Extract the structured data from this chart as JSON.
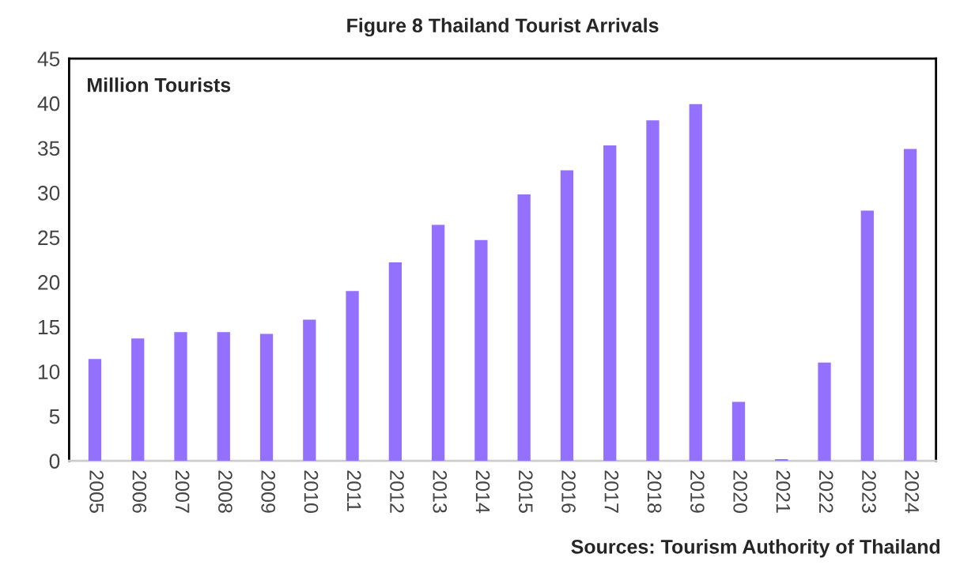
{
  "chart_data": {
    "type": "bar",
    "title": "Figure 8 Thailand Tourist Arrivals",
    "ylabel": "Million Tourists",
    "categories": [
      "2005",
      "2006",
      "2007",
      "2008",
      "2009",
      "2010",
      "2011",
      "2012",
      "2013",
      "2014",
      "2015",
      "2016",
      "2017",
      "2018",
      "2019",
      "2020",
      "2021",
      "2022",
      "2023",
      "2024"
    ],
    "values": [
      11.4,
      13.7,
      14.4,
      14.4,
      14.2,
      15.8,
      19.0,
      22.2,
      26.4,
      24.7,
      29.8,
      32.5,
      35.3,
      38.1,
      39.9,
      6.6,
      0.2,
      11.0,
      28.0,
      34.9
    ],
    "color": "#9370fd",
    "ylim": [
      0,
      45
    ],
    "yticks": [
      0,
      5,
      10,
      15,
      20,
      25,
      30,
      35,
      40,
      45
    ],
    "grid": false,
    "legend": false,
    "annotations": [
      "Sources: Tourism Authority of Thailand"
    ]
  }
}
